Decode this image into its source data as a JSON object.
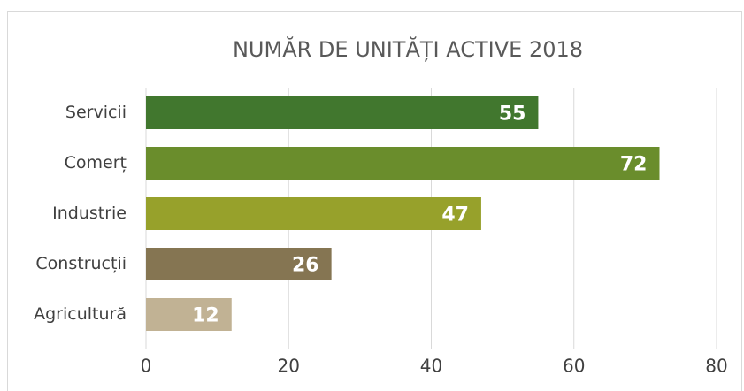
{
  "chart_data": {
    "type": "bar",
    "orientation": "horizontal",
    "title": "NUMĂR DE UNITĂȚI ACTIVE 2018",
    "categories": [
      "Servicii",
      "Comerț",
      "Industrie",
      "Construcții",
      "Agricultură"
    ],
    "values": [
      55,
      72,
      47,
      26,
      12
    ],
    "colors": [
      "#41772e",
      "#6a8d2c",
      "#97a12b",
      "#857552",
      "#c1b294"
    ],
    "xlim": [
      0,
      80
    ],
    "xticks": [
      0,
      20,
      40,
      60,
      80
    ],
    "grid": true
  }
}
